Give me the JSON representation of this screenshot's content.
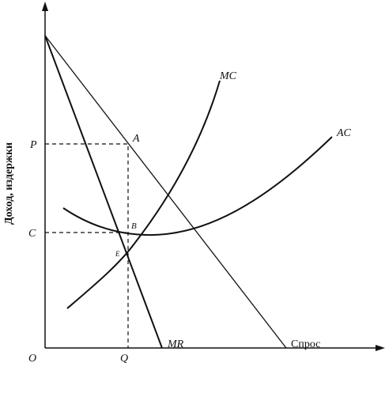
{
  "axis": {
    "y_label": "Доход, издержки",
    "origin": "O"
  },
  "points": {
    "p": "P",
    "c": "C",
    "q": "Q",
    "a": "A",
    "b": "B",
    "e": "E"
  },
  "curves": {
    "mc": "MC",
    "ac": "AC",
    "mr": "MR",
    "demand": "Спрос"
  }
}
